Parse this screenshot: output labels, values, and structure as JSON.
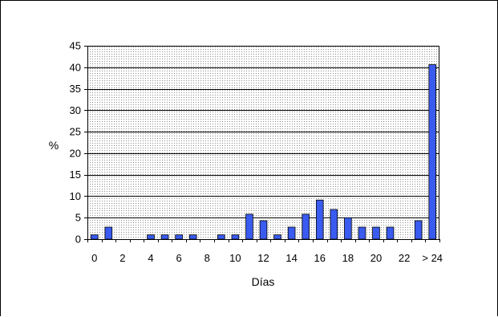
{
  "chart_data": {
    "type": "bar",
    "xlabel": "Días",
    "ylabel": "%",
    "ylim": [
      0,
      45
    ],
    "yticks": [
      0,
      5,
      10,
      15,
      20,
      25,
      30,
      35,
      40,
      45
    ],
    "grid": true,
    "categories": [
      "0",
      "1",
      "2",
      "3",
      "4",
      "5",
      "6",
      "7",
      "8",
      "9",
      "10",
      "11",
      "12",
      "13",
      "14",
      "15",
      "16",
      "17",
      "18",
      "19",
      "20",
      "21",
      "22",
      "23",
      "> 24"
    ],
    "xtick_labels": [
      "0",
      "2",
      "4",
      "6",
      "8",
      "10",
      "12",
      "14",
      "16",
      "18",
      "20",
      "22",
      "> 24"
    ],
    "values": [
      1,
      2.8,
      0,
      0,
      1,
      1,
      1,
      1,
      0,
      1,
      1,
      5.8,
      4.3,
      1,
      2.8,
      5.8,
      9.1,
      6.9,
      5,
      2.8,
      2.8,
      2.8,
      0,
      4.3,
      40.6
    ],
    "colors": {
      "bar": "#3a5bf0",
      "plot_bg": "#ffffff",
      "grid": "#000000"
    }
  }
}
